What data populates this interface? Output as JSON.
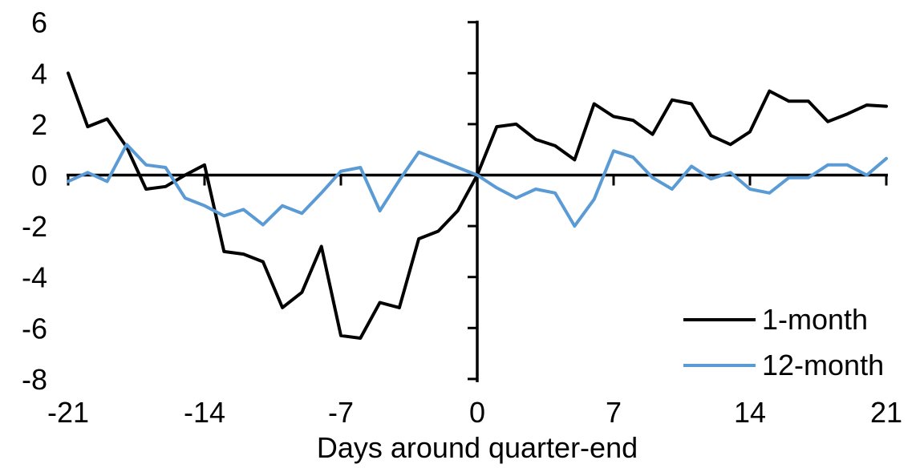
{
  "chart_data": {
    "type": "line",
    "title": "",
    "xlabel": "Days around quarter-end",
    "ylabel": "",
    "xlim": [
      -21,
      21
    ],
    "ylim": [
      -8,
      6
    ],
    "x_ticks": [
      -21,
      -14,
      -7,
      0,
      7,
      14,
      21
    ],
    "y_ticks": [
      6,
      4,
      2,
      0,
      -2,
      -4,
      -6,
      -8
    ],
    "grid": false,
    "legend_position": "bottom-right",
    "x": [
      -21,
      -20,
      -19,
      -18,
      -17,
      -16,
      -15,
      -14,
      -13,
      -12,
      -11,
      -10,
      -9,
      -8,
      -7,
      -6,
      -5,
      -4,
      -3,
      -2,
      -1,
      0,
      1,
      2,
      3,
      4,
      5,
      6,
      7,
      8,
      9,
      10,
      11,
      12,
      13,
      14,
      15,
      16,
      17,
      18,
      19,
      20,
      21
    ],
    "series": [
      {
        "name": "1-month",
        "color": "#000000",
        "values": [
          4.0,
          1.9,
          2.2,
          1.1,
          -0.55,
          -0.45,
          0.0,
          0.4,
          -3.0,
          -3.1,
          -3.4,
          -5.2,
          -4.6,
          -2.8,
          -6.3,
          -6.4,
          -5.0,
          -5.2,
          -2.5,
          -2.2,
          -1.4,
          0.0,
          1.9,
          2.0,
          1.4,
          1.15,
          0.6,
          2.8,
          2.3,
          2.15,
          1.6,
          2.95,
          2.8,
          1.55,
          1.2,
          1.7,
          3.3,
          2.9,
          2.9,
          2.1,
          2.4,
          2.75,
          2.7
        ]
      },
      {
        "name": "12-month",
        "color": "#5B9BD5",
        "values": [
          -0.25,
          0.1,
          -0.25,
          1.2,
          0.4,
          0.3,
          -0.9,
          -1.2,
          -1.6,
          -1.35,
          -1.95,
          -1.2,
          -1.5,
          -0.7,
          0.15,
          0.3,
          -1.4,
          -0.2,
          0.9,
          0.6,
          0.3,
          0.0,
          -0.5,
          -0.9,
          -0.55,
          -0.7,
          -2.0,
          -0.95,
          0.95,
          0.7,
          -0.1,
          -0.55,
          0.35,
          -0.15,
          0.1,
          -0.55,
          -0.7,
          -0.1,
          -0.1,
          0.4,
          0.4,
          0.0,
          0.65
        ]
      }
    ]
  }
}
